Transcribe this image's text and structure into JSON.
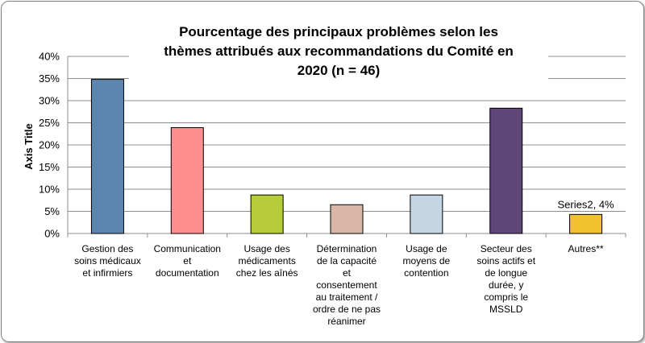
{
  "chart_data": {
    "type": "bar",
    "title_lines": [
      "Pourcentage des principaux problèmes selon les",
      "thèmes attribués aux recommandations du Comité en",
      "2020 (n = 46)"
    ],
    "ylabel": "Axis Title",
    "xlabel": "",
    "ylim": [
      0,
      40
    ],
    "yticks": [
      "0%",
      "5%",
      "10%",
      "15%",
      "20%",
      "25%",
      "30%",
      "35%",
      "40%"
    ],
    "grid": true,
    "categories": [
      [
        "Gestion des",
        "soins médicaux",
        "et infirmiers"
      ],
      [
        "Communication",
        "et",
        "documentation"
      ],
      [
        "Usage des",
        "médicaments",
        "chez les aînés"
      ],
      [
        "Détermination",
        "de la capacité",
        "et",
        "consentement",
        "au traitement /",
        "ordre de ne pas",
        "réanimer"
      ],
      [
        "Usage de",
        "moyens de",
        "contention"
      ],
      [
        "Secteur des",
        "soins actifs et",
        "de longue",
        "durée, y",
        "compris le",
        "MSSLD"
      ],
      [
        "Autres**"
      ]
    ],
    "values": [
      34.8,
      23.9,
      8.7,
      6.5,
      8.7,
      28.3,
      4.3
    ],
    "colors": [
      "#5b86b0",
      "#ff8f8f",
      "#b7cc3a",
      "#d9b6a8",
      "#c5d5e4",
      "#5f4679",
      "#f2c12e"
    ],
    "data_label": {
      "index": 6,
      "text": "Series2, 4%"
    }
  }
}
